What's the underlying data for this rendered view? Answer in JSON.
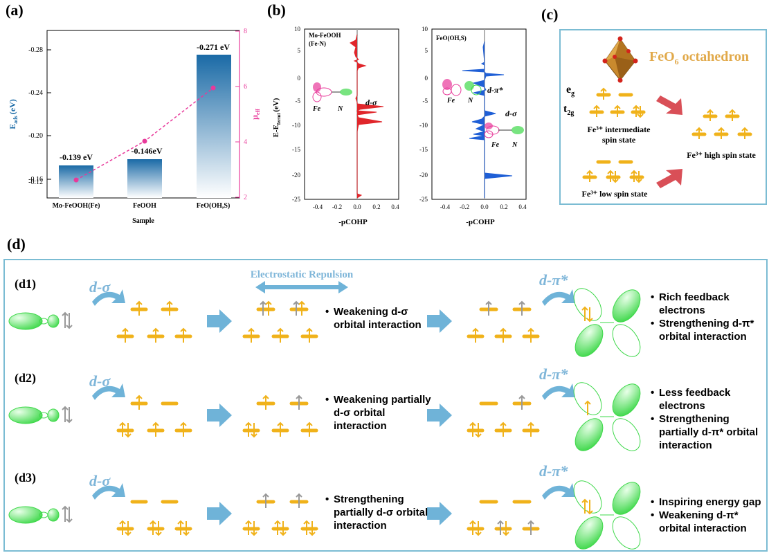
{
  "panel_labels": {
    "a": "(a)",
    "b": "(b)",
    "c": "(c)",
    "d": "(d)"
  },
  "panel_a": {
    "ylabel_left": "E",
    "ylabel_left_sub": "ads",
    "ylabel_left_unit": "(eV)",
    "ylabel_right": "μ",
    "ylabel_right_sub": "eff",
    "xlabel": "Sample",
    "yticks_left": [
      "-0.28",
      "-0.24",
      "-0.20",
      "-0.16",
      "-0.12"
    ],
    "yticks_right": [
      "8",
      "6",
      "4",
      "2"
    ],
    "bar_labels": [
      "-0.139 eV",
      "-0.146eV",
      "-0.271 eV"
    ],
    "categories": [
      "Mo-FeOOH(Fe)",
      "FeOOH",
      "FeO(OH,S)"
    ],
    "colors": {
      "bar": "#1a6aa6",
      "mu_line": "#e8399a"
    }
  },
  "panel_b": {
    "ylabel": "E-E",
    "ylabel_sub": "fermi",
    "ylabel_unit": "(eV)",
    "xlabel": "-pCOHP",
    "yticks": [
      "10",
      "5",
      "0",
      "-5",
      "-10",
      "-15",
      "-20",
      "-25"
    ],
    "xticks": [
      "-0.4",
      "-0.2",
      "0.0",
      "0.2",
      "0.4"
    ],
    "left_title": [
      "Mo-FeOOH",
      "(Fe-N)"
    ],
    "right_title": "FeO(OH,S)",
    "fe": "Fe",
    "n": "N",
    "d_sigma": "d-σ",
    "d_pi": "d-π*",
    "colors": {
      "left": "#e0262b",
      "right": "#1f5fd6"
    }
  },
  "panel_c": {
    "title_main": "FeO",
    "title_sub": "6",
    "title_rest": " octahedron",
    "eg": "e",
    "eg_sub": "g",
    "t2g": "t",
    "t2g_sub": "2g",
    "intermediate": [
      "Fe³⁺ intermediate",
      "spin state"
    ],
    "high": "Fe³⁺ high spin state",
    "low": "Fe³⁺ low spin state",
    "colors": {
      "orbital": "#f0b21a",
      "arrow": "#d94f57",
      "border": "#7bbcd3"
    }
  },
  "panel_d": {
    "electrostatic": "Electrostatic Repulsion",
    "d_sigma": "d-σ",
    "d_pi": "d-π*",
    "rows": [
      {
        "label": "(d1)",
        "text1": [
          "Weakening d-σ",
          "orbital interaction"
        ],
        "bullets": [
          [
            "Rich feedback",
            "electrons"
          ],
          [
            "Strengthening d-π*",
            "orbital interaction"
          ]
        ]
      },
      {
        "label": "(d2)",
        "text1": [
          "Weakening partially",
          "d-σ orbital",
          "interaction"
        ],
        "bullets": [
          [
            "Less feedback",
            "electrons"
          ],
          [
            "Strengthening",
            "partially d-π* orbital",
            "interaction"
          ]
        ]
      },
      {
        "label": "(d3)",
        "text1": [
          "Strengthening",
          "partially d-σ orbital",
          "interaction"
        ],
        "bullets": [
          [
            "Inspiring energy gap"
          ],
          [
            "Weakening d-π*",
            "orbital interaction"
          ]
        ]
      }
    ],
    "colors": {
      "blue_text": "#7fb6d9",
      "orbital_green": "#3ed84a"
    }
  }
}
